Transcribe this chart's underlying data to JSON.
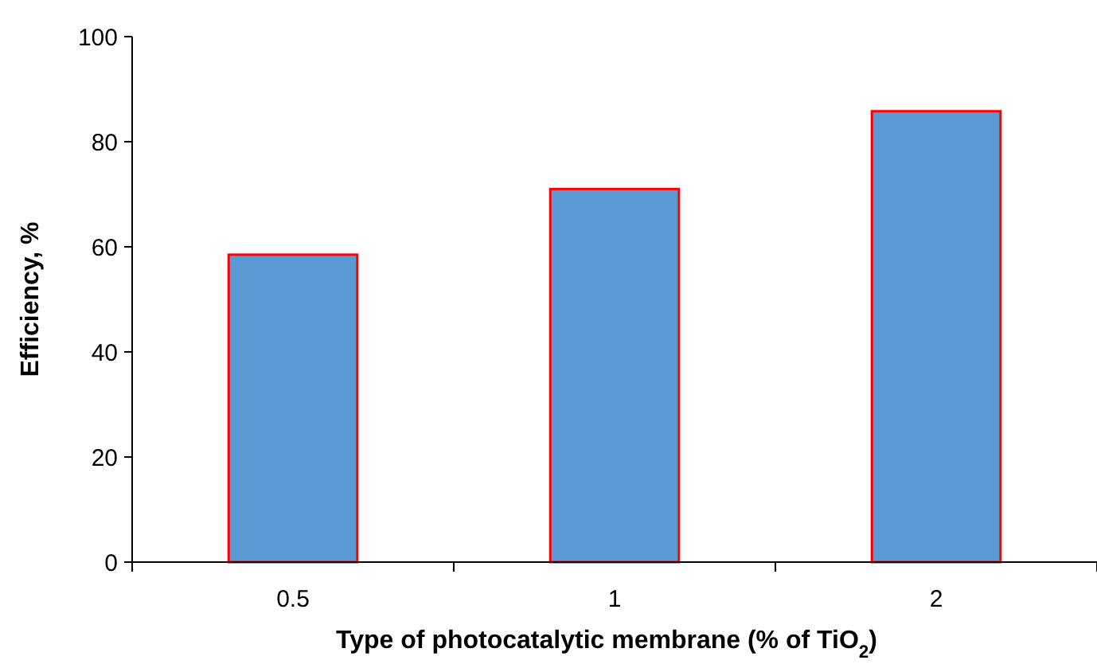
{
  "chart_data": {
    "type": "bar",
    "xlabel": "Type of photocatalytic membrane (% of TiO$_{2}$)",
    "ylabel": "Efficiency, %",
    "categories": [
      "0.5",
      "1",
      "2"
    ],
    "series": [
      {
        "color": "#5b9bd5",
        "values": [
          58.5,
          71,
          85.8
        ]
      }
    ],
    "ylim": [
      0,
      100
    ],
    "yticks": [
      0,
      20,
      40,
      60,
      80,
      100
    ],
    "grid": false
  }
}
